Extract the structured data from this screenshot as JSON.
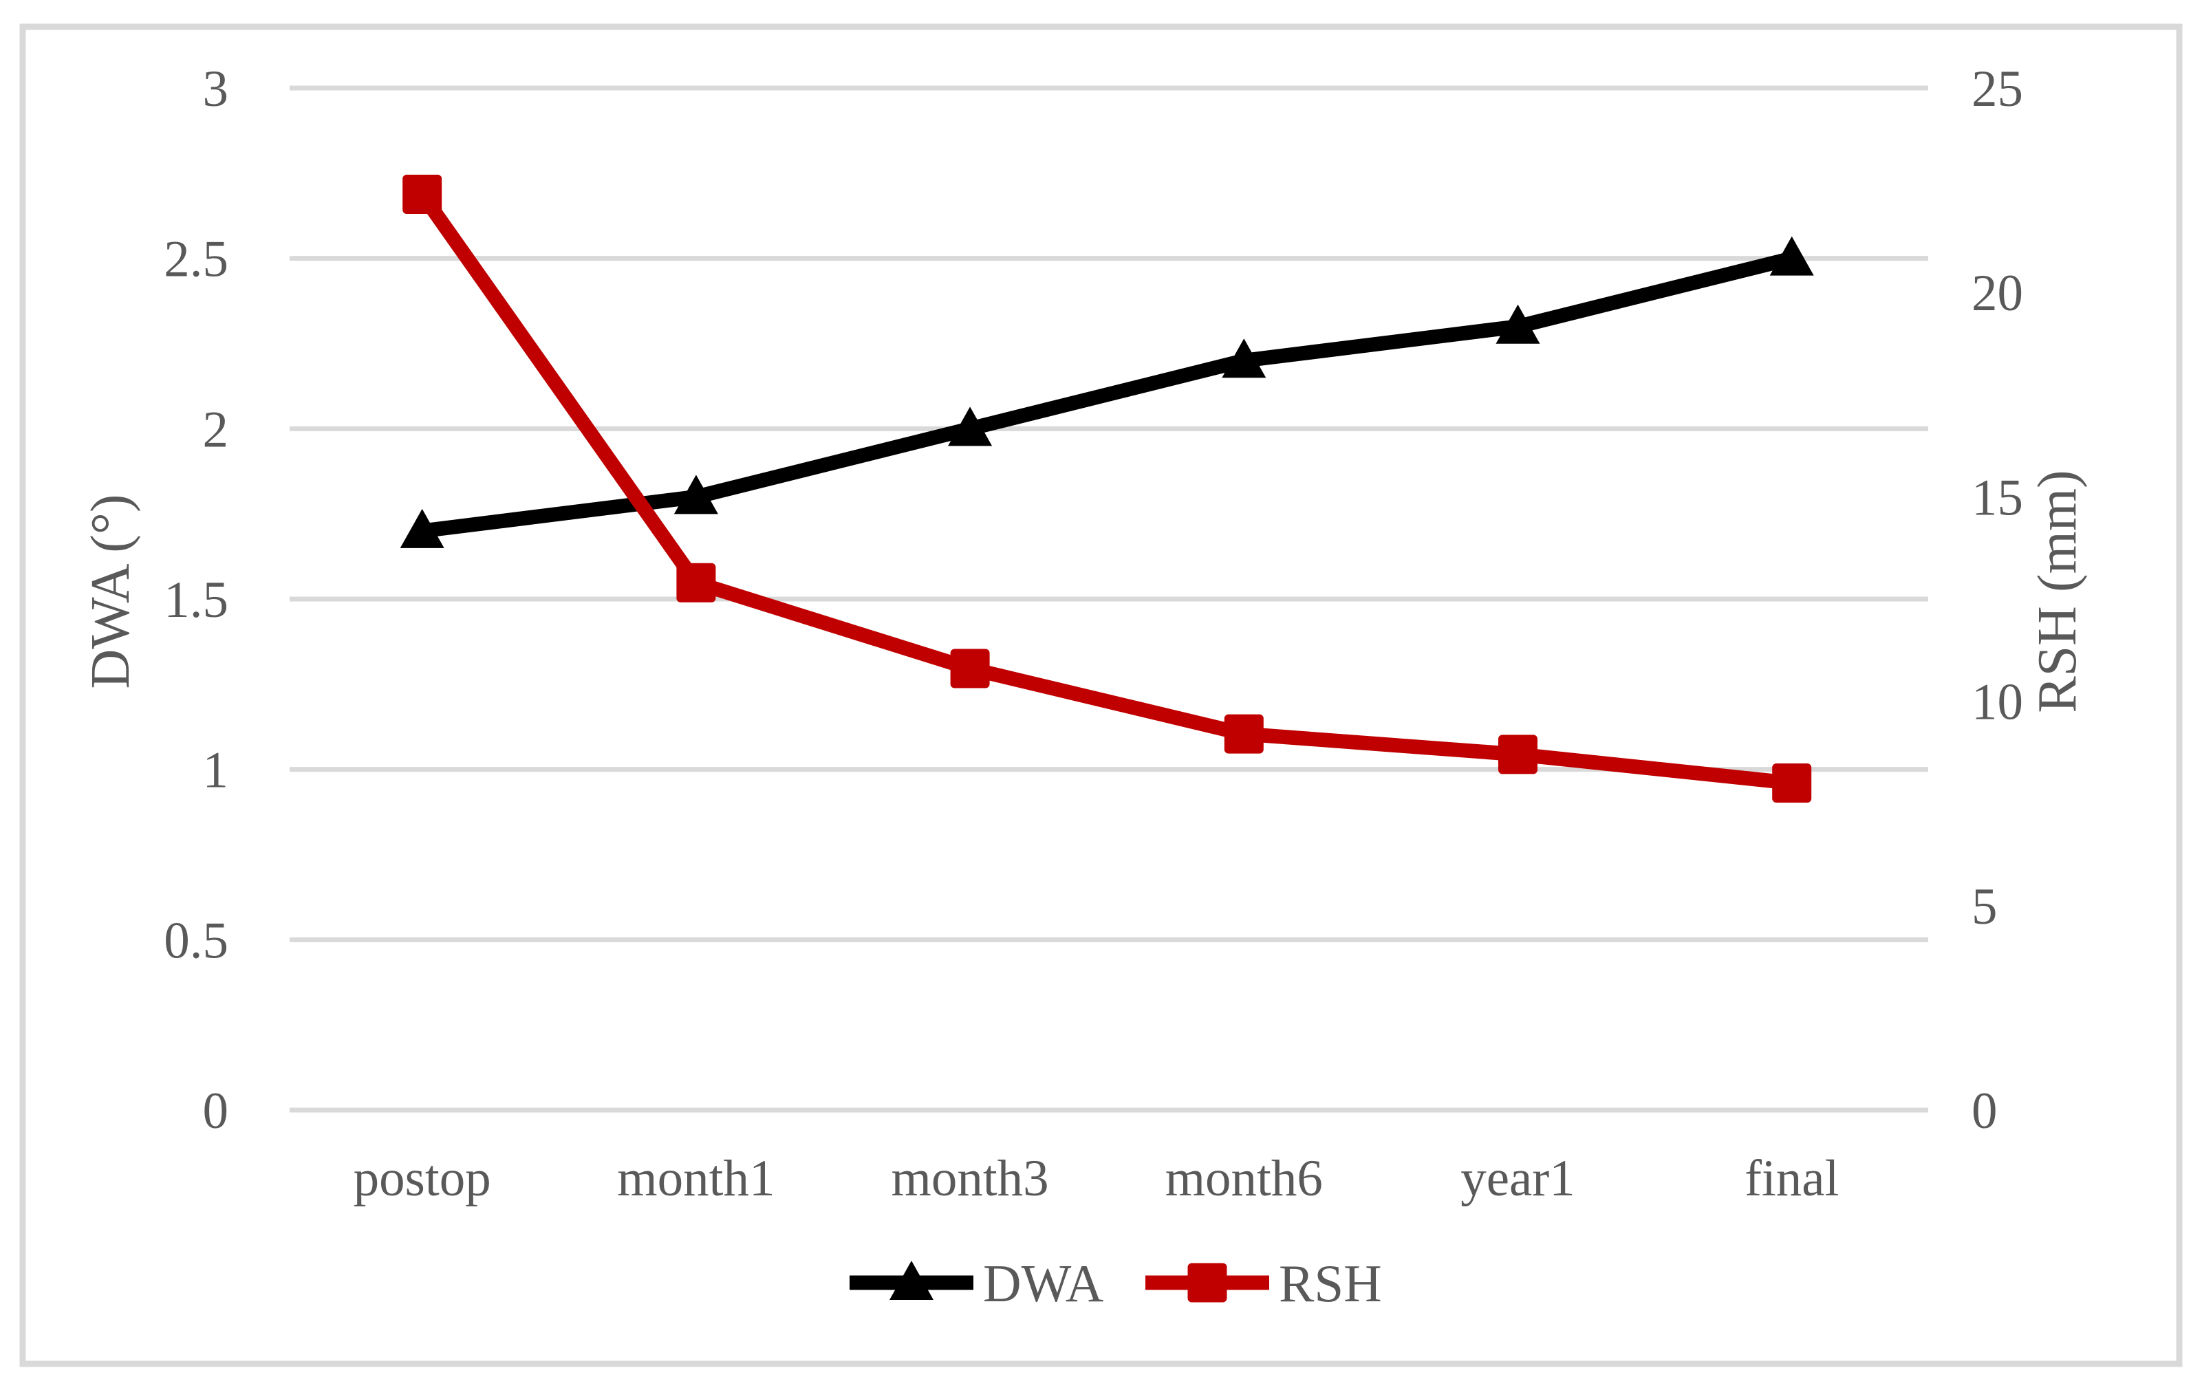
{
  "chart_data": {
    "type": "line",
    "title": "",
    "categories": [
      "postop",
      "month1",
      "month3",
      "month6",
      "year1",
      "final"
    ],
    "series": [
      {
        "name": "DWA",
        "axis": "left",
        "color": "#000000",
        "marker": "triangle",
        "values": [
          1.7,
          1.8,
          2.0,
          2.2,
          2.3,
          2.5
        ]
      },
      {
        "name": "RSH",
        "axis": "right",
        "color": "#C00000",
        "marker": "square",
        "values": [
          22.4,
          12.9,
          10.8,
          9.2,
          8.7,
          8.0
        ]
      }
    ],
    "left_axis": {
      "label": "DWA (°)",
      "min": 0,
      "max": 3,
      "step": 0.5,
      "ticks": [
        "0",
        "0.5",
        "1",
        "1.5",
        "2",
        "2.5",
        "3"
      ]
    },
    "right_axis": {
      "label": "RSH (mm)",
      "min": 0,
      "max": 25,
      "step": 5,
      "ticks": [
        "0",
        "5",
        "10",
        "15",
        "20",
        "25"
      ]
    },
    "legend": {
      "position": "bottom",
      "entries": [
        "DWA",
        "RSH"
      ]
    },
    "grid": true
  },
  "style": {
    "background": "#FFFFFF",
    "text_color": "#595959",
    "gridline_color": "#D9D9D9",
    "border_color": "#D9D9D9",
    "series_black": "#000000",
    "series_red": "#C00000"
  }
}
